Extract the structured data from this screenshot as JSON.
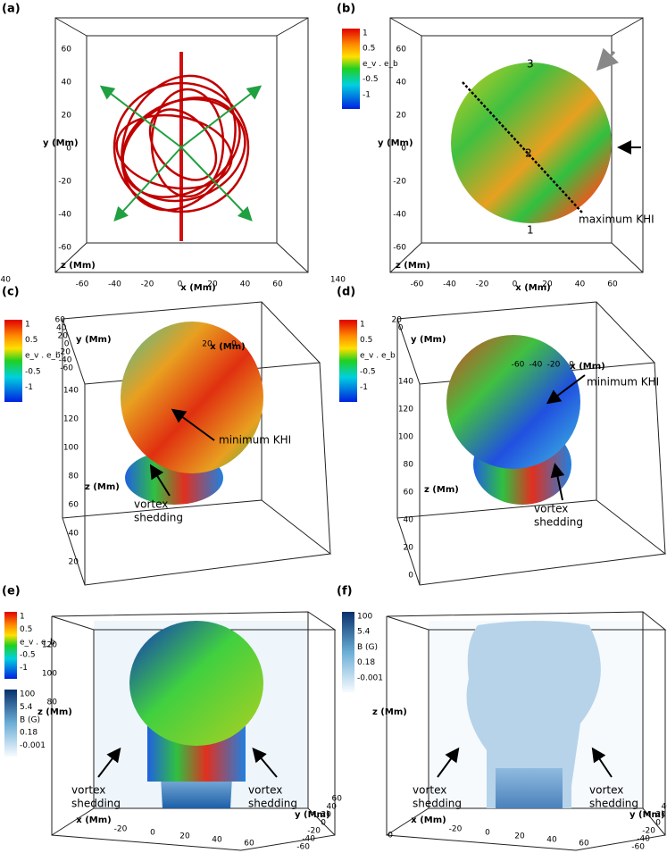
{
  "panels": [
    {
      "label": "(a)",
      "axes": {
        "x_title": "x (Mm)",
        "y_title": "y (Mm)",
        "z_title": "z (Mm)",
        "x_ticks": [
          -60,
          -40,
          -20,
          0,
          20,
          40,
          60
        ],
        "y_ticks": [
          60,
          40,
          20,
          0,
          -20,
          -40,
          -60
        ],
        "z_ticks": [
          140
        ]
      }
    },
    {
      "label": "(b)",
      "colorbar": {
        "ticks": [
          1,
          0.5,
          -0.5,
          -1
        ],
        "title": "e_v . e_b"
      },
      "axes": {
        "x_title": "x (Mm)",
        "y_title": "y (Mm)",
        "z_title": "z (Mm)",
        "x_ticks": [
          -60,
          -40,
          -20,
          0,
          20,
          40,
          60
        ],
        "y_ticks": [
          60,
          40,
          20,
          0,
          -20,
          -40,
          -60
        ],
        "z_ticks": [
          140
        ]
      },
      "annotations": [
        [
          "3"
        ],
        [
          "2"
        ],
        [
          "1"
        ],
        [
          "maximum KHI"
        ]
      ]
    },
    {
      "label": "(c)",
      "colorbar": {
        "ticks": [
          1,
          0.5,
          -0.5,
          -1
        ],
        "title": "e_v . e_b"
      },
      "axes": {
        "x_title": "x (Mm)",
        "y_title": "y (Mm)",
        "z_title": "z (Mm)",
        "x_ticks": [
          20,
          0
        ],
        "y_ticks": [
          60,
          40,
          20,
          0,
          -20,
          -40,
          -60
        ],
        "z_ticks": [
          140,
          120,
          100,
          80,
          60,
          40,
          20
        ]
      },
      "annotations": [
        [
          "minimum KHI"
        ],
        [
          "vortex",
          "shedding"
        ]
      ]
    },
    {
      "label": "(d)",
      "colorbar": {
        "ticks": [
          1,
          0.5,
          -0.5,
          -1
        ],
        "title": "e_v . e_b"
      },
      "axes": {
        "x_title": "x (Mm)",
        "y_title": "y (Mm)",
        "z_title": "z (Mm)",
        "x_ticks": [
          -60,
          -40,
          -20,
          0
        ],
        "y_ticks": [
          20,
          0
        ],
        "z_ticks": [
          140,
          120,
          100,
          80,
          60,
          40,
          20,
          0
        ]
      },
      "annotations": [
        [
          "minimum KHI"
        ],
        [
          "vortex",
          "shedding"
        ]
      ]
    },
    {
      "label": "(e)",
      "colorbar": {
        "ticks": [
          1,
          0.5,
          -0.5,
          -1
        ],
        "title": "e_v . e_b"
      },
      "colorbar2": {
        "ticks": [
          100,
          5.4,
          0.18,
          -0.001
        ],
        "title": "B (G)"
      },
      "axes": {
        "x_title": "x (Mm)",
        "y_title": "y (Mm)",
        "z_title": "z (Mm)",
        "x_ticks": [
          -20,
          0,
          20,
          40,
          60
        ],
        "y_ticks": [
          -60,
          -40,
          -20,
          0,
          20,
          40,
          60
        ],
        "z_ticks": [
          120,
          100,
          80
        ]
      },
      "annotations": [
        [
          "vortex",
          "shedding"
        ],
        [
          "vortex",
          "shedding"
        ]
      ]
    },
    {
      "label": "(f)",
      "colorbar": {
        "ticks": [
          100,
          5.4,
          0.18,
          -0.001
        ],
        "title": "B (G)"
      },
      "axes": {
        "x_title": "x (Mm)",
        "y_title": "y (Mm)",
        "z_title": "z (Mm)",
        "x_ticks": [
          -20,
          0,
          20,
          40,
          60
        ],
        "y_ticks": [
          -60,
          -40,
          -20,
          0,
          20,
          40,
          60
        ],
        "z_ticks": [
          0
        ]
      },
      "annotations": [
        [
          "vortex",
          "shedding"
        ],
        [
          "vortex",
          "shedding"
        ]
      ]
    }
  ]
}
